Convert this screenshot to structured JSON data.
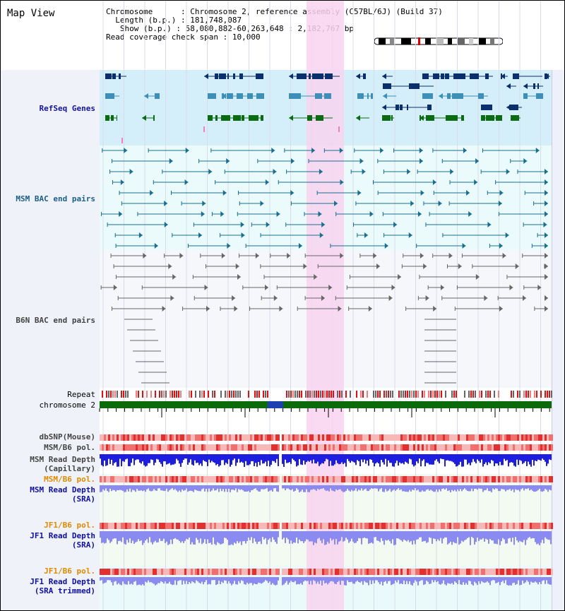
{
  "title": "Map View",
  "info": {
    "chromosome_label": "Chromosome",
    "chromosome_value": "Chromosome 2, reference assembly (C57BL/6J) (Build 37)",
    "length_label": "Length (b.p.)",
    "length_value": "181,748,087",
    "show_label": "Show (b.p.)",
    "show_value": "58,080,882-60,263,648 : 2,182,767 bp",
    "coverage_label": "Read coverage check span",
    "coverage_value": "10,000"
  },
  "tracks": {
    "refseq": "RefSeq Genes",
    "msm_bac": "MSM BAC end pairs",
    "b6n_bac": "B6N BAC end pairs",
    "repeat": "Repeat",
    "chromosome": "chromosome 2",
    "dbsnp": "dbSNP(Mouse)",
    "msm_b6_pol_1": "MSM/B6 pol.",
    "msm_depth_cap_1": "MSM Read Depth",
    "msm_depth_cap_2": "(Capillary)",
    "msm_b6_pol_2": "MSM/B6 pol.",
    "msm_depth_sra_1": "MSM Read Depth",
    "msm_depth_sra_2": "(SRA)",
    "jf1_b6_pol_1": "JF1/B6 pol.",
    "jf1_depth_sra_1": "JF1 Read Depth",
    "jf1_depth_sra_2": "(SRA)",
    "jf1_b6_pol_2": "JF1/B6 pol.",
    "jf1_depth_trim_1": "JF1 Read Depth",
    "jf1_depth_trim_2": "(SRA trimmed)"
  },
  "axis_ticks": [
    "58400000",
    "58800000",
    "59200000",
    "59600000",
    "60000000"
  ],
  "colors": {
    "highlight": "#f8d3f0",
    "refseq_bg": "#d4effa",
    "msm_bg": "#ebfbfb",
    "gene_dark": "#0b2f6b",
    "gene_light": "#3d8fb8",
    "gene_green": "#0b6b12",
    "bac_msm": "#1a6f8f",
    "bac_b6n": "#666666",
    "chrom_green": "#0b6b0b",
    "depth_blue": "#1e1ee0",
    "depth_light": "#8a8af0"
  }
}
